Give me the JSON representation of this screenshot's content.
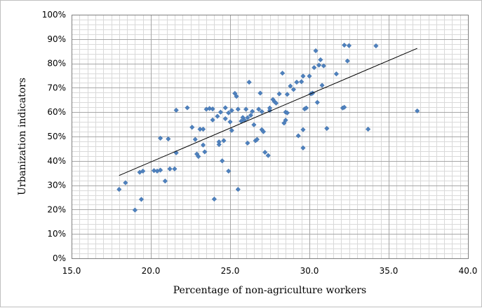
{
  "chart_data": {
    "type": "scatter",
    "title": "",
    "xlabel": "Percentage of non-agriculture workers",
    "ylabel": "Urbanization indicators",
    "xlim": [
      15.0,
      40.0
    ],
    "ylim": [
      0,
      1.0
    ],
    "x_ticks": [
      "15.0",
      "20.0",
      "25.0",
      "30.0",
      "35.0",
      "40.0"
    ],
    "y_ticks": [
      "0%",
      "10%",
      "20%",
      "30%",
      "40%",
      "50%",
      "60%",
      "70%",
      "80%",
      "90%",
      "100%"
    ],
    "grid": true,
    "legend": "none",
    "colors": {
      "points": "#4f81bd",
      "trendline": "#000000",
      "grid": "#bfbfbf"
    },
    "trendline": {
      "x": [
        18.0,
        36.8
      ],
      "y": [
        0.34,
        0.862
      ]
    },
    "points": [
      {
        "x": 18.0,
        "y": 0.283
      },
      {
        "x": 18.4,
        "y": 0.31
      },
      {
        "x": 19.0,
        "y": 0.198
      },
      {
        "x": 19.3,
        "y": 0.353
      },
      {
        "x": 19.4,
        "y": 0.242
      },
      {
        "x": 19.5,
        "y": 0.358
      },
      {
        "x": 20.2,
        "y": 0.36
      },
      {
        "x": 20.4,
        "y": 0.358
      },
      {
        "x": 20.6,
        "y": 0.362
      },
      {
        "x": 20.6,
        "y": 0.493
      },
      {
        "x": 20.9,
        "y": 0.317
      },
      {
        "x": 21.1,
        "y": 0.49
      },
      {
        "x": 21.2,
        "y": 0.367
      },
      {
        "x": 21.5,
        "y": 0.367
      },
      {
        "x": 21.6,
        "y": 0.433
      },
      {
        "x": 21.6,
        "y": 0.608
      },
      {
        "x": 22.3,
        "y": 0.618
      },
      {
        "x": 22.6,
        "y": 0.538
      },
      {
        "x": 22.8,
        "y": 0.488
      },
      {
        "x": 22.9,
        "y": 0.428
      },
      {
        "x": 23.0,
        "y": 0.418
      },
      {
        "x": 23.1,
        "y": 0.53
      },
      {
        "x": 23.3,
        "y": 0.53
      },
      {
        "x": 23.3,
        "y": 0.465
      },
      {
        "x": 23.4,
        "y": 0.437
      },
      {
        "x": 23.5,
        "y": 0.612
      },
      {
        "x": 23.7,
        "y": 0.615
      },
      {
        "x": 23.9,
        "y": 0.613
      },
      {
        "x": 23.9,
        "y": 0.568
      },
      {
        "x": 24.0,
        "y": 0.243
      },
      {
        "x": 24.2,
        "y": 0.583
      },
      {
        "x": 24.3,
        "y": 0.467
      },
      {
        "x": 24.3,
        "y": 0.478
      },
      {
        "x": 24.4,
        "y": 0.6
      },
      {
        "x": 24.5,
        "y": 0.4
      },
      {
        "x": 24.6,
        "y": 0.483
      },
      {
        "x": 24.7,
        "y": 0.573
      },
      {
        "x": 24.7,
        "y": 0.618
      },
      {
        "x": 24.9,
        "y": 0.597
      },
      {
        "x": 24.9,
        "y": 0.358
      },
      {
        "x": 25.0,
        "y": 0.56
      },
      {
        "x": 25.1,
        "y": 0.525
      },
      {
        "x": 25.1,
        "y": 0.607
      },
      {
        "x": 25.3,
        "y": 0.677
      },
      {
        "x": 25.4,
        "y": 0.665
      },
      {
        "x": 25.5,
        "y": 0.283
      },
      {
        "x": 25.5,
        "y": 0.612
      },
      {
        "x": 25.7,
        "y": 0.563
      },
      {
        "x": 25.8,
        "y": 0.578
      },
      {
        "x": 25.9,
        "y": 0.567
      },
      {
        "x": 26.0,
        "y": 0.612
      },
      {
        "x": 26.1,
        "y": 0.473
      },
      {
        "x": 26.1,
        "y": 0.577
      },
      {
        "x": 26.2,
        "y": 0.723
      },
      {
        "x": 26.3,
        "y": 0.587
      },
      {
        "x": 26.4,
        "y": 0.603
      },
      {
        "x": 26.5,
        "y": 0.548
      },
      {
        "x": 26.6,
        "y": 0.483
      },
      {
        "x": 26.7,
        "y": 0.488
      },
      {
        "x": 26.8,
        "y": 0.612
      },
      {
        "x": 26.9,
        "y": 0.678
      },
      {
        "x": 27.0,
        "y": 0.528
      },
      {
        "x": 27.0,
        "y": 0.602
      },
      {
        "x": 27.1,
        "y": 0.52
      },
      {
        "x": 27.2,
        "y": 0.435
      },
      {
        "x": 27.4,
        "y": 0.422
      },
      {
        "x": 27.5,
        "y": 0.607
      },
      {
        "x": 27.5,
        "y": 0.617
      },
      {
        "x": 27.7,
        "y": 0.652
      },
      {
        "x": 27.8,
        "y": 0.643
      },
      {
        "x": 27.9,
        "y": 0.637
      },
      {
        "x": 28.1,
        "y": 0.675
      },
      {
        "x": 28.3,
        "y": 0.76
      },
      {
        "x": 28.4,
        "y": 0.555
      },
      {
        "x": 28.5,
        "y": 0.567
      },
      {
        "x": 28.5,
        "y": 0.6
      },
      {
        "x": 28.6,
        "y": 0.597
      },
      {
        "x": 28.6,
        "y": 0.673
      },
      {
        "x": 28.8,
        "y": 0.707
      },
      {
        "x": 29.0,
        "y": 0.693
      },
      {
        "x": 29.2,
        "y": 0.723
      },
      {
        "x": 29.3,
        "y": 0.503
      },
      {
        "x": 29.5,
        "y": 0.725
      },
      {
        "x": 29.6,
        "y": 0.748
      },
      {
        "x": 29.6,
        "y": 0.528
      },
      {
        "x": 29.6,
        "y": 0.453
      },
      {
        "x": 29.7,
        "y": 0.613
      },
      {
        "x": 29.8,
        "y": 0.617
      },
      {
        "x": 30.0,
        "y": 0.748
      },
      {
        "x": 30.1,
        "y": 0.675
      },
      {
        "x": 30.2,
        "y": 0.678
      },
      {
        "x": 30.3,
        "y": 0.783
      },
      {
        "x": 30.4,
        "y": 0.852
      },
      {
        "x": 30.5,
        "y": 0.64
      },
      {
        "x": 30.6,
        "y": 0.793
      },
      {
        "x": 30.7,
        "y": 0.815
      },
      {
        "x": 30.8,
        "y": 0.71
      },
      {
        "x": 30.9,
        "y": 0.79
      },
      {
        "x": 31.1,
        "y": 0.533
      },
      {
        "x": 31.7,
        "y": 0.757
      },
      {
        "x": 32.1,
        "y": 0.617
      },
      {
        "x": 32.2,
        "y": 0.62
      },
      {
        "x": 32.2,
        "y": 0.875
      },
      {
        "x": 32.4,
        "y": 0.81
      },
      {
        "x": 32.5,
        "y": 0.873
      },
      {
        "x": 33.7,
        "y": 0.53
      },
      {
        "x": 34.2,
        "y": 0.872
      },
      {
        "x": 36.8,
        "y": 0.605
      }
    ]
  }
}
